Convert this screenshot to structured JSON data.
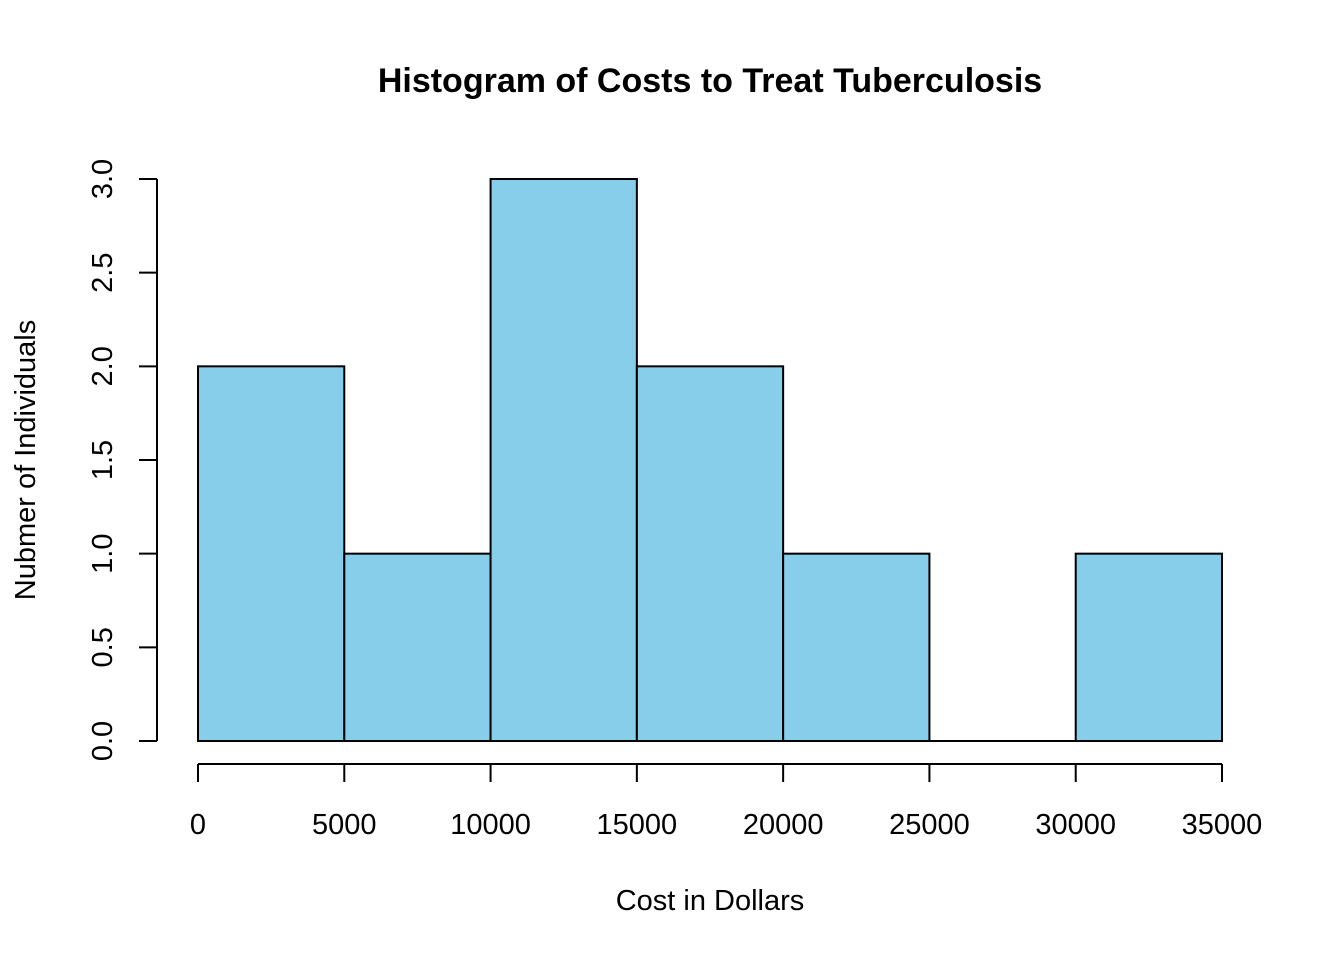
{
  "chart_data": {
    "type": "bar",
    "title": "Histogram of Costs to Treat Tuberculosis",
    "xlabel": "Cost in Dollars",
    "ylabel": "Nubmer of Individuals",
    "bins": [
      {
        "start": 0,
        "end": 5000,
        "count": 2
      },
      {
        "start": 5000,
        "end": 10000,
        "count": 1
      },
      {
        "start": 10000,
        "end": 15000,
        "count": 3
      },
      {
        "start": 15000,
        "end": 20000,
        "count": 2
      },
      {
        "start": 20000,
        "end": 25000,
        "count": 1
      },
      {
        "start": 25000,
        "end": 30000,
        "count": 0
      },
      {
        "start": 30000,
        "end": 35000,
        "count": 1
      }
    ],
    "xlim": [
      0,
      35000
    ],
    "ylim": [
      0,
      3
    ],
    "x_ticks": [
      "0",
      "5000",
      "10000",
      "15000",
      "20000",
      "25000",
      "30000",
      "35000"
    ],
    "y_ticks": [
      "0.0",
      "0.5",
      "1.0",
      "1.5",
      "2.0",
      "2.5",
      "3.0"
    ],
    "bar_color": "#87CEEB",
    "grid": false
  }
}
